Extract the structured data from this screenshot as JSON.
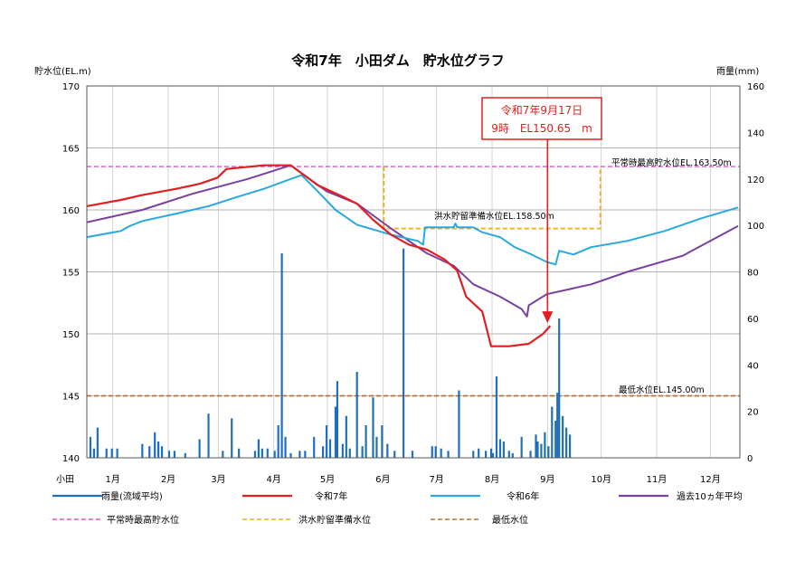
{
  "chart_data": {
    "type": "line",
    "title": "令和7年　小田ダム　貯水位グラフ",
    "left_axis": {
      "label": "貯水位(EL.m)",
      "ylim": [
        140,
        170
      ],
      "ticks": [
        140,
        145,
        150,
        155,
        160,
        165,
        170
      ]
    },
    "right_axis": {
      "label": "雨量(mm)",
      "ylim": [
        0,
        160
      ],
      "ticks": [
        0,
        20,
        40,
        60,
        80,
        100,
        120,
        140,
        160
      ]
    },
    "x_axis": {
      "ylabel_left": "小田",
      "months": [
        "1月",
        "2月",
        "3月",
        "4月",
        "5月",
        "6月",
        "7月",
        "8月",
        "9月",
        "10月",
        "11月",
        "12月"
      ]
    },
    "grid": true,
    "colors": {
      "rain": "#1f6fbf",
      "r7": "#e02020",
      "r6": "#2aa9e0",
      "avg10": "#7b3fa0",
      "normal_max": "#e84fd0",
      "flood": "#f0b020",
      "min": "#c07030",
      "annotation": "#e02020"
    },
    "reference_lines": {
      "normal_max": {
        "value": 163.5,
        "label": "平常時最高貯水位EL.163.50m"
      },
      "flood_reserve": {
        "value": 158.5,
        "label": "洪水貯留準備水位EL.158.50m",
        "period": [
          "6/16",
          "10/15"
        ]
      },
      "minimum": {
        "value": 145.0,
        "label": "最低水位EL.145.00m"
      }
    },
    "annotation": {
      "line1": "令和7年9月17日",
      "line2": "9時　EL150.65　m",
      "date": "9/17",
      "value": 150.65
    },
    "series": [
      {
        "name": "令和7年",
        "key": "r7",
        "points": [
          [
            "1/1",
            160.3
          ],
          [
            "1/20",
            160.8
          ],
          [
            "2/1",
            161.2
          ],
          [
            "2/20",
            161.7
          ],
          [
            "3/5",
            162.1
          ],
          [
            "3/15",
            162.6
          ],
          [
            "3/20",
            163.3
          ],
          [
            "4/10",
            163.6
          ],
          [
            "4/25",
            163.6
          ],
          [
            "5/10",
            162.0
          ],
          [
            "5/25",
            161.0
          ],
          [
            "6/1",
            160.5
          ],
          [
            "6/10",
            159.2
          ],
          [
            "6/20",
            158.0
          ],
          [
            "6/30",
            157.2
          ],
          [
            "7/10",
            156.8
          ],
          [
            "7/20",
            156.0
          ],
          [
            "7/27",
            155.1
          ],
          [
            "8/1",
            153.0
          ],
          [
            "8/10",
            151.8
          ],
          [
            "8/15",
            149.0
          ],
          [
            "8/25",
            149.0
          ],
          [
            "9/5",
            149.2
          ],
          [
            "9/8",
            149.5
          ],
          [
            "9/13",
            150.0
          ],
          [
            "9/17",
            150.65
          ]
        ]
      },
      {
        "name": "令和6年",
        "key": "r6",
        "points": [
          [
            "1/1",
            157.8
          ],
          [
            "1/20",
            158.3
          ],
          [
            "1/25",
            158.7
          ],
          [
            "2/1",
            159.1
          ],
          [
            "2/20",
            159.7
          ],
          [
            "3/10",
            160.3
          ],
          [
            "3/25",
            161.0
          ],
          [
            "4/10",
            161.7
          ],
          [
            "4/25",
            162.5
          ],
          [
            "5/1",
            162.8
          ],
          [
            "5/10",
            161.5
          ],
          [
            "5/20",
            160.0
          ],
          [
            "6/1",
            158.8
          ],
          [
            "6/20",
            158.0
          ],
          [
            "7/5",
            157.5
          ],
          [
            "7/8",
            157.2
          ],
          [
            "7/9",
            158.6
          ],
          [
            "7/20",
            158.6
          ],
          [
            "7/25",
            158.6
          ],
          [
            "7/26",
            158.9
          ],
          [
            "7/27",
            158.6
          ],
          [
            "8/5",
            158.6
          ],
          [
            "8/10",
            158.2
          ],
          [
            "8/20",
            157.8
          ],
          [
            "8/28",
            157.0
          ],
          [
            "9/5",
            156.5
          ],
          [
            "9/15",
            155.8
          ],
          [
            "9/20",
            155.6
          ],
          [
            "9/22",
            156.7
          ],
          [
            "9/30",
            156.4
          ],
          [
            "10/10",
            157.0
          ],
          [
            "10/30",
            157.5
          ],
          [
            "11/20",
            158.3
          ],
          [
            "12/10",
            159.3
          ],
          [
            "12/31",
            160.2
          ]
        ]
      },
      {
        "name": "過去10ヵ年平均",
        "key": "avg10",
        "points": [
          [
            "1/1",
            159.0
          ],
          [
            "2/1",
            160.0
          ],
          [
            "3/1",
            161.3
          ],
          [
            "4/1",
            162.5
          ],
          [
            "4/25",
            163.6
          ],
          [
            "5/15",
            161.5
          ],
          [
            "6/1",
            160.5
          ],
          [
            "6/20",
            158.5
          ],
          [
            "7/10",
            156.5
          ],
          [
            "7/25",
            155.5
          ],
          [
            "8/5",
            154.0
          ],
          [
            "8/20",
            153.0
          ],
          [
            "9/1",
            152.0
          ],
          [
            "9/4",
            151.4
          ],
          [
            "9/5",
            152.3
          ],
          [
            "9/15",
            153.2
          ],
          [
            "10/10",
            154.0
          ],
          [
            "10/30",
            155.0
          ],
          [
            "11/30",
            156.3
          ],
          [
            "12/31",
            158.7
          ]
        ]
      }
    ],
    "rain": {
      "name": "雨量(流域平均)",
      "bars": [
        [
          "1/3",
          9
        ],
        [
          "1/5",
          4
        ],
        [
          "1/7",
          13
        ],
        [
          "1/12",
          4
        ],
        [
          "1/15",
          4
        ],
        [
          "1/18",
          4
        ],
        [
          "2/1",
          6
        ],
        [
          "2/5",
          5
        ],
        [
          "2/8",
          11
        ],
        [
          "2/10",
          7
        ],
        [
          "2/12",
          5
        ],
        [
          "2/16",
          3
        ],
        [
          "2/19",
          3
        ],
        [
          "2/25",
          2
        ],
        [
          "3/5",
          8
        ],
        [
          "3/10",
          19
        ],
        [
          "3/18",
          3
        ],
        [
          "3/23",
          17
        ],
        [
          "3/27",
          4
        ],
        [
          "4/5",
          3
        ],
        [
          "4/7",
          8
        ],
        [
          "4/9",
          4
        ],
        [
          "4/12",
          4
        ],
        [
          "4/16",
          3
        ],
        [
          "4/18",
          14
        ],
        [
          "4/20",
          88
        ],
        [
          "4/22",
          9
        ],
        [
          "4/25",
          2
        ],
        [
          "4/30",
          3
        ],
        [
          "5/3",
          3
        ],
        [
          "5/8",
          9
        ],
        [
          "5/13",
          5
        ],
        [
          "5/15",
          14
        ],
        [
          "5/17",
          8
        ],
        [
          "5/20",
          22
        ],
        [
          "5/21",
          33
        ],
        [
          "5/24",
          6
        ],
        [
          "5/26",
          18
        ],
        [
          "5/28",
          4
        ],
        [
          "6/1",
          37
        ],
        [
          "6/4",
          5
        ],
        [
          "6/6",
          14
        ],
        [
          "6/10",
          26
        ],
        [
          "6/12",
          9
        ],
        [
          "6/15",
          14
        ],
        [
          "6/18",
          6
        ],
        [
          "6/22",
          3
        ],
        [
          "6/27",
          90
        ],
        [
          "7/2",
          3
        ],
        [
          "7/13",
          5
        ],
        [
          "7/15",
          5
        ],
        [
          "7/18",
          4
        ],
        [
          "7/22",
          3
        ],
        [
          "7/28",
          29
        ],
        [
          "8/5",
          3
        ],
        [
          "8/8",
          4
        ],
        [
          "8/12",
          3
        ],
        [
          "8/15",
          4
        ],
        [
          "8/16",
          2
        ],
        [
          "8/18",
          35
        ],
        [
          "8/20",
          8
        ],
        [
          "8/22",
          7
        ],
        [
          "8/25",
          3
        ],
        [
          "8/27",
          2
        ],
        [
          "9/1",
          9
        ],
        [
          "9/6",
          3
        ],
        [
          "9/9",
          10
        ],
        [
          "9/10",
          7
        ],
        [
          "9/12",
          6
        ],
        [
          "9/14",
          11
        ],
        [
          "9/16",
          5
        ],
        [
          "9/18",
          22
        ],
        [
          "9/20",
          16
        ],
        [
          "9/21",
          28
        ],
        [
          "9/22",
          60
        ],
        [
          "9/24",
          18
        ],
        [
          "9/26",
          13
        ],
        [
          "9/28",
          10
        ]
      ]
    }
  },
  "legend": [
    {
      "label": "雨量(流域平均)",
      "key": "rain",
      "style": "solid"
    },
    {
      "label": "令和7年",
      "key": "r7",
      "style": "solid"
    },
    {
      "label": "令和6年",
      "key": "r6",
      "style": "solid"
    },
    {
      "label": "過去10ヵ年平均",
      "key": "avg10",
      "style": "solid"
    },
    {
      "label": "平常時最高貯水位",
      "key": "normal_max",
      "style": "dashed"
    },
    {
      "label": "洪水貯留準備水位",
      "key": "flood",
      "style": "dashed"
    },
    {
      "label": "最低水位",
      "key": "min",
      "style": "dashed"
    }
  ]
}
